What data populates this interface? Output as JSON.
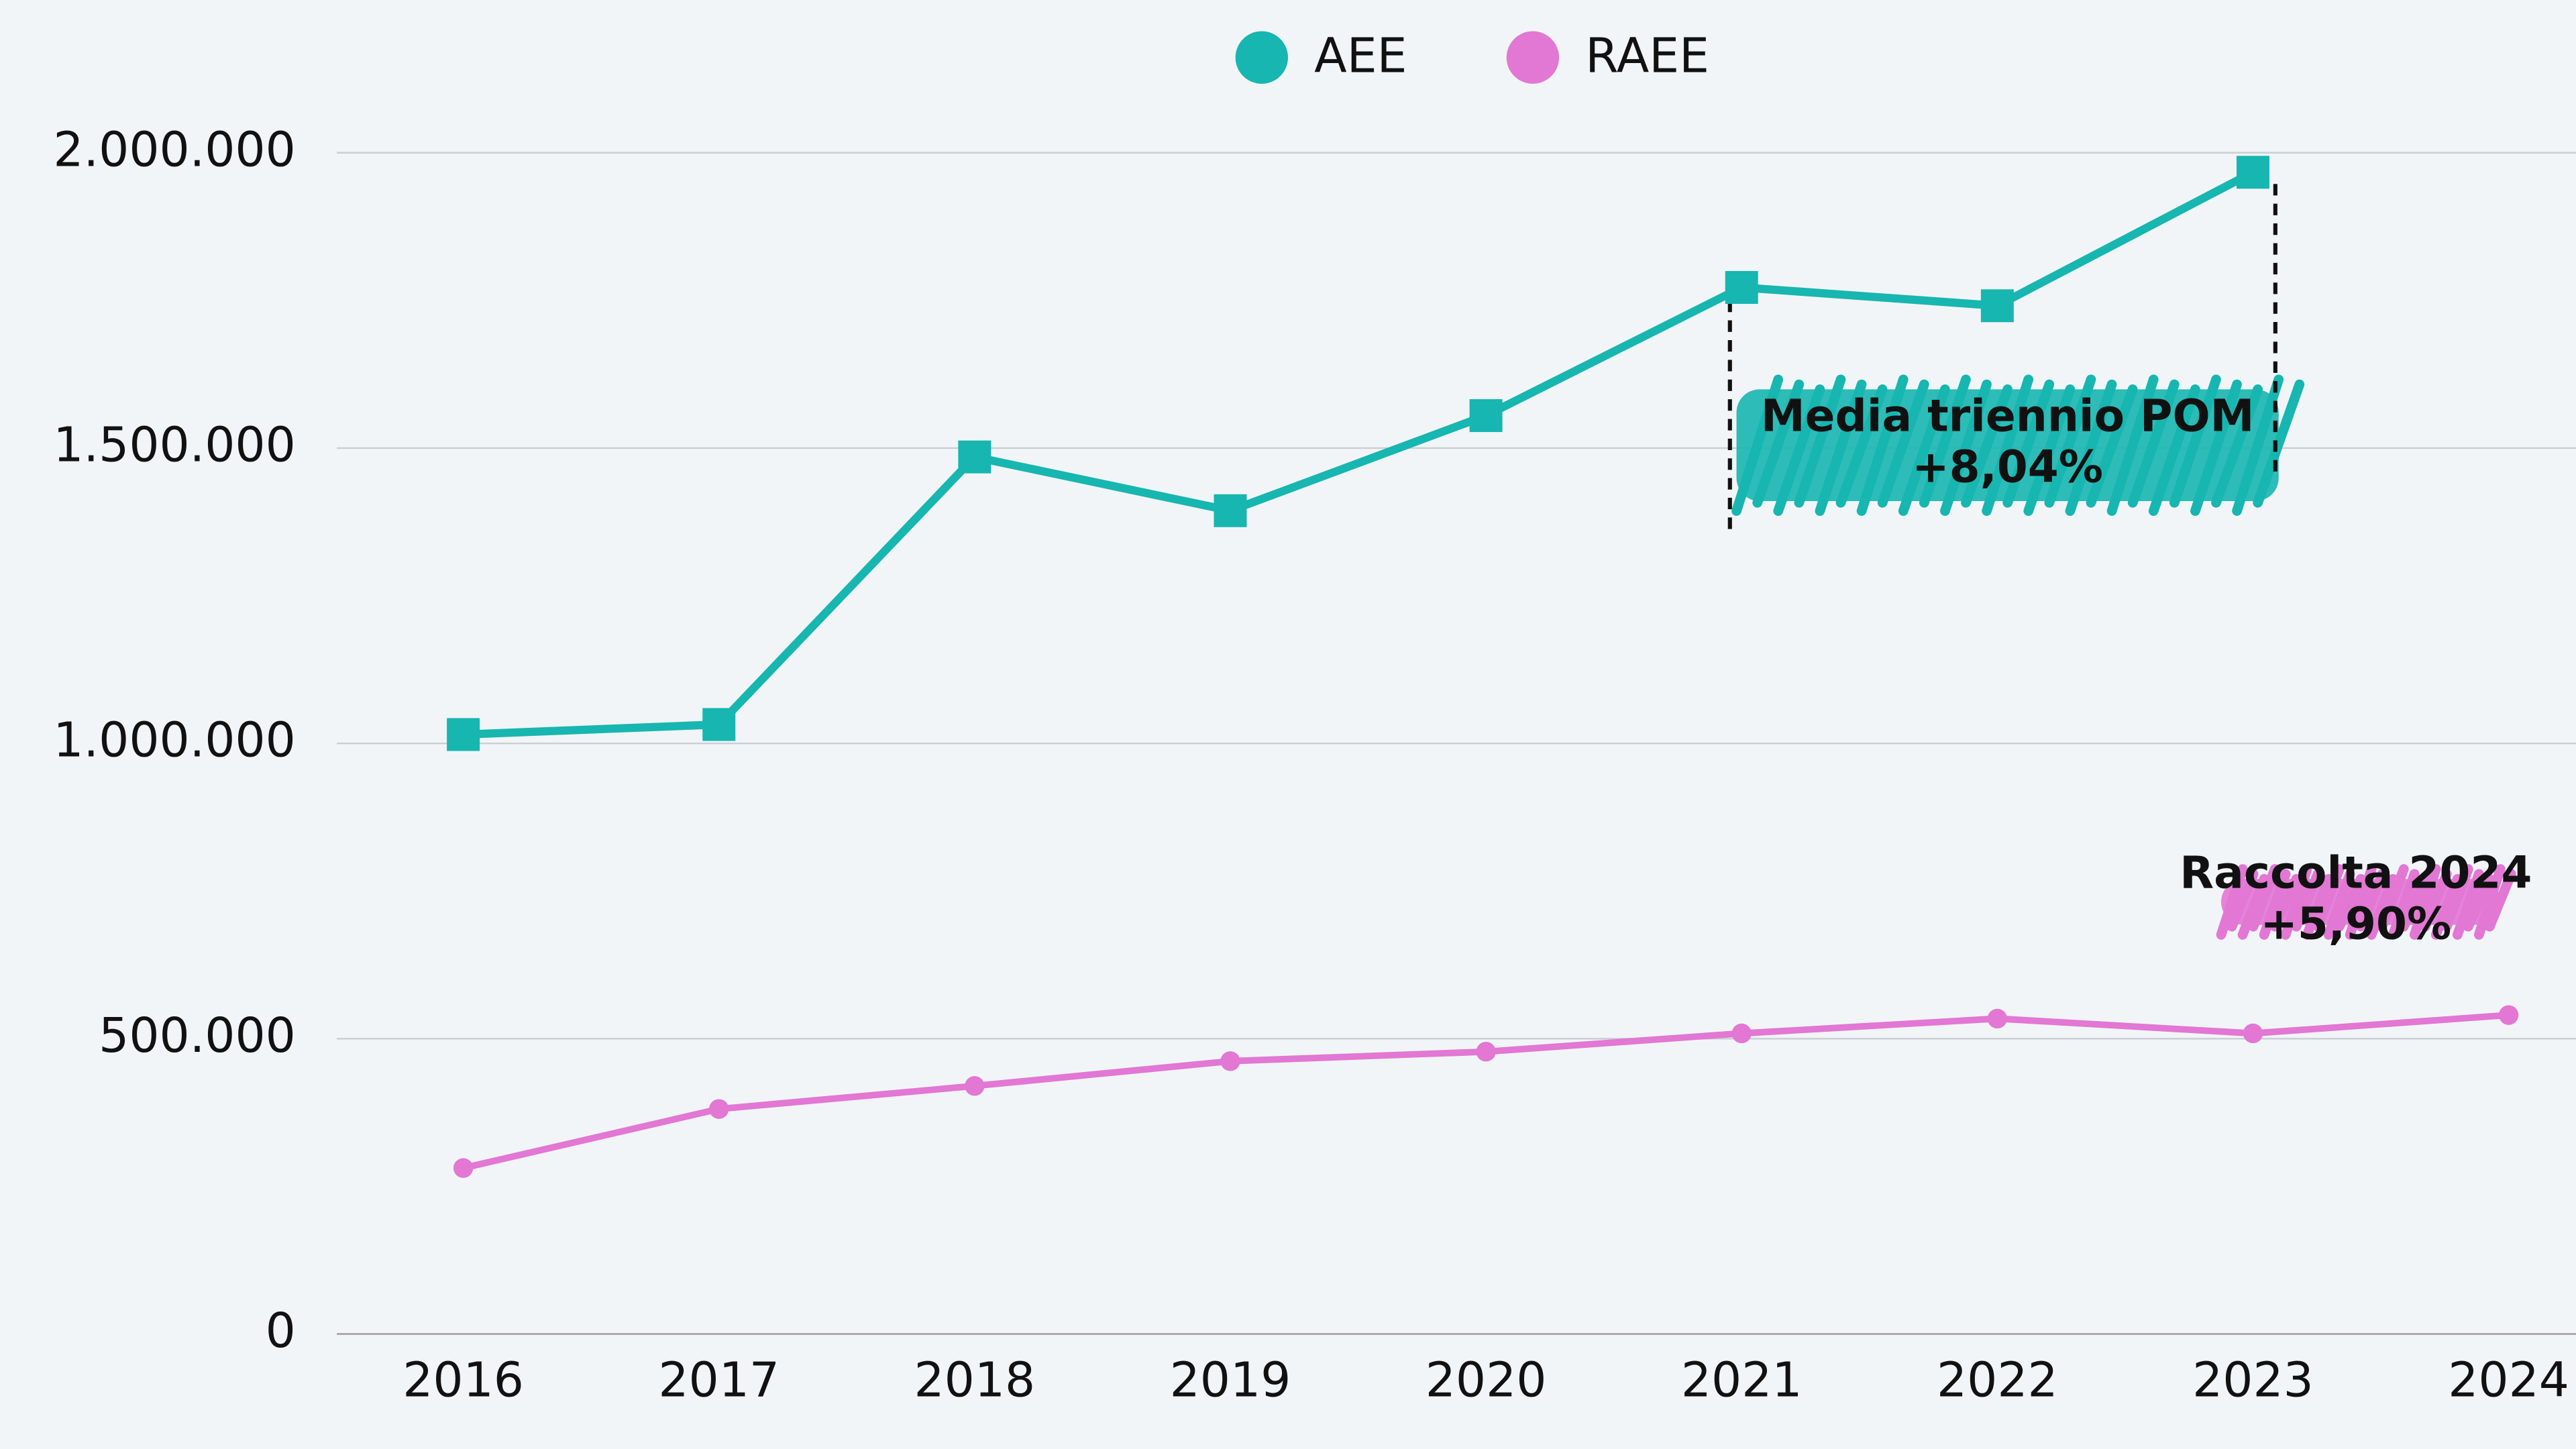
{
  "chart_data": {
    "type": "line",
    "categories": [
      "2016",
      "2017",
      "2018",
      "2019",
      "2020",
      "2021",
      "2022",
      "2023",
      "2024"
    ],
    "series": [
      {
        "name": "AEE",
        "color": "#17b6b0",
        "marker": "square",
        "values": [
          1015000,
          1032000,
          1485000,
          1394000,
          1555000,
          1772000,
          1741000,
          1967000,
          null
        ]
      },
      {
        "name": "RAEE",
        "color": "#e277d4",
        "marker": "circle",
        "values": [
          281000,
          381000,
          420000,
          462000,
          478000,
          509000,
          534000,
          509000,
          540000
        ]
      }
    ],
    "ylim": [
      0,
      2000000
    ],
    "yticks": [
      0,
      {
        "value": 500000,
        "label": "500.000"
      },
      {
        "value": 1000000,
        "label": "1.000.000"
      },
      {
        "value": 1500000,
        "label": "1.500.000"
      },
      {
        "value": 2000000,
        "label": "2.000.000"
      }
    ],
    "grid": true,
    "legend": "top",
    "annotations": [
      {
        "lines": [
          "Media triennio POM",
          "+8,04%"
        ],
        "color": "#17b6b0"
      },
      {
        "lines": [
          "Raccolta 2024",
          "+5,90%"
        ],
        "color": "#e277d4"
      }
    ]
  }
}
